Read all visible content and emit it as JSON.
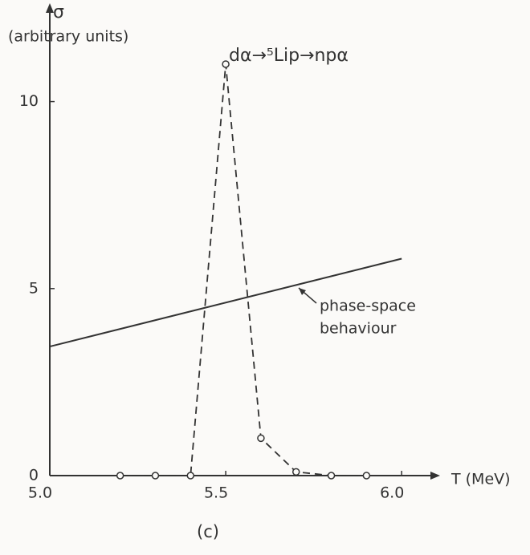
{
  "chart_data": {
    "type": "line",
    "y_label": "σ",
    "y_label_sub": "(arbitrary units)",
    "x_label": "T (MeV)",
    "caption": "(c)",
    "annotations": [
      "dα→⁵Lip→npα",
      "phase-space",
      "behaviour"
    ],
    "series": [
      {
        "x": [
          5.2,
          5.3,
          5.4,
          5.5,
          5.6,
          5.7,
          5.8,
          5.9
        ],
        "values": [
          0,
          0,
          0,
          11,
          1.0,
          0.1,
          0,
          0
        ],
        "color": "#333333",
        "dashed": true,
        "markers": true
      },
      {
        "x": [
          5.0,
          6.0
        ],
        "values": [
          3.45,
          5.8
        ],
        "color": "#333333",
        "dashed": false,
        "markers": false
      }
    ],
    "xlim": [
      5.0,
      6.1
    ],
    "xticks": [
      {
        "value": 5.0,
        "label": "5.0"
      },
      5.5,
      {
        "value": 6.0,
        "label": "6.0"
      }
    ],
    "ylim": [
      0,
      12.5
    ],
    "yticks": [
      0,
      5,
      10
    ],
    "grid": false
  }
}
